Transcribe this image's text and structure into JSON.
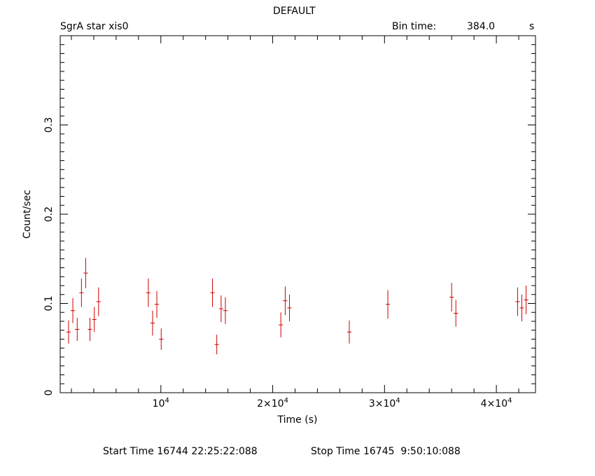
{
  "header": {
    "title": "DEFAULT",
    "object_label": "SgrA star xis0",
    "bin_time_label": "Bin time:",
    "bin_time_value": "384.0",
    "bin_time_unit": "s"
  },
  "footer": {
    "start_time": "Start Time 16744 22:25:22:088",
    "stop_time": "Stop Time 16745  9:50:10:088"
  },
  "colors": {
    "data": "#cc0000",
    "axis": "#000000"
  },
  "chart_data": {
    "type": "scatter",
    "xlabel": "Time (s)",
    "ylabel": "Count/sec",
    "xlim": [
      1000,
      43500
    ],
    "ylim": [
      0,
      0.4
    ],
    "x_ticks": [
      {
        "value": 10000,
        "base": "10",
        "exp": "4"
      },
      {
        "value": 20000,
        "base": "2×10",
        "exp": "4"
      },
      {
        "value": 30000,
        "base": "3×10",
        "exp": "4"
      },
      {
        "value": 40000,
        "base": "4×10",
        "exp": "4"
      }
    ],
    "y_ticks": [
      {
        "value": 0,
        "label": "0"
      },
      {
        "value": 0.1,
        "label": "0.1"
      },
      {
        "value": 0.2,
        "label": "0.2"
      },
      {
        "value": 0.3,
        "label": "0.3"
      }
    ],
    "x_half_width": 192,
    "points": [
      {
        "x": 1750,
        "y": 0.068,
        "err": 0.013
      },
      {
        "x": 2130,
        "y": 0.092,
        "err": 0.014
      },
      {
        "x": 2520,
        "y": 0.071,
        "err": 0.013
      },
      {
        "x": 2900,
        "y": 0.112,
        "err": 0.016
      },
      {
        "x": 3280,
        "y": 0.134,
        "err": 0.017
      },
      {
        "x": 3660,
        "y": 0.071,
        "err": 0.013
      },
      {
        "x": 4050,
        "y": 0.082,
        "err": 0.014
      },
      {
        "x": 4430,
        "y": 0.102,
        "err": 0.016
      },
      {
        "x": 8880,
        "y": 0.112,
        "err": 0.016
      },
      {
        "x": 9260,
        "y": 0.078,
        "err": 0.014
      },
      {
        "x": 9640,
        "y": 0.099,
        "err": 0.015
      },
      {
        "x": 10030,
        "y": 0.06,
        "err": 0.012
      },
      {
        "x": 14620,
        "y": 0.112,
        "err": 0.016
      },
      {
        "x": 15000,
        "y": 0.054,
        "err": 0.011
      },
      {
        "x": 15390,
        "y": 0.094,
        "err": 0.015
      },
      {
        "x": 15770,
        "y": 0.092,
        "err": 0.015
      },
      {
        "x": 20730,
        "y": 0.076,
        "err": 0.014
      },
      {
        "x": 21120,
        "y": 0.103,
        "err": 0.016
      },
      {
        "x": 21500,
        "y": 0.095,
        "err": 0.015
      },
      {
        "x": 26850,
        "y": 0.068,
        "err": 0.013
      },
      {
        "x": 30300,
        "y": 0.099,
        "err": 0.016
      },
      {
        "x": 36000,
        "y": 0.107,
        "err": 0.016
      },
      {
        "x": 36380,
        "y": 0.089,
        "err": 0.015
      },
      {
        "x": 41900,
        "y": 0.102,
        "err": 0.016
      },
      {
        "x": 42280,
        "y": 0.095,
        "err": 0.015
      },
      {
        "x": 42660,
        "y": 0.104,
        "err": 0.016
      }
    ]
  }
}
